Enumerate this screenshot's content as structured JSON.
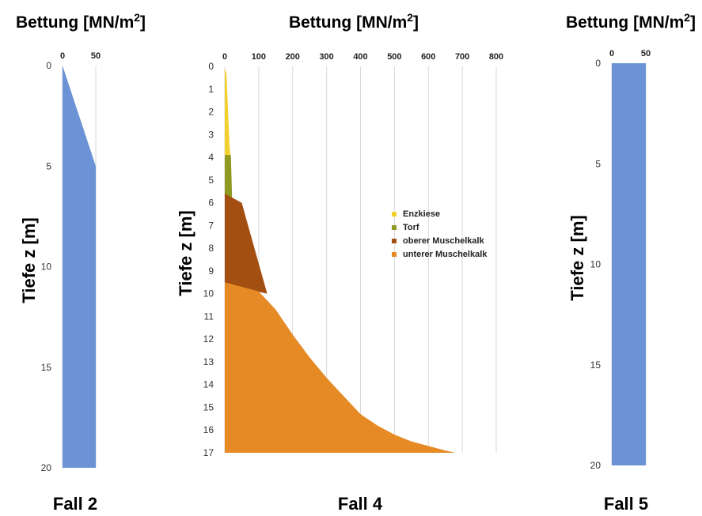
{
  "colors": {
    "blue": "#6b93d6",
    "yellow": "#f2d12e",
    "olive": "#8f9a22",
    "brown": "#a44f12",
    "orange": "#e58a25",
    "grid": "#d9d9d9"
  },
  "chart_data": [
    {
      "type": "area",
      "title": "Bettung [MN/m2]",
      "ylabel": "Tiefe z [m]",
      "caption": "Fall 2",
      "xlim": [
        0,
        50
      ],
      "ylim": [
        0,
        20
      ],
      "xticks": [
        0,
        50
      ],
      "yticks": [
        0,
        5,
        10,
        15,
        20
      ],
      "series": [
        {
          "x": [
            0,
            50,
            50
          ],
          "y": [
            0,
            5,
            20
          ],
          "color": "blue"
        }
      ]
    },
    {
      "type": "area",
      "title": "Bettung [MN/m2]",
      "ylabel": "Tiefe z [m]",
      "caption": "Fall 4",
      "xlim": [
        0,
        800
      ],
      "ylim": [
        0,
        17
      ],
      "xticks": [
        0,
        100,
        200,
        300,
        400,
        500,
        600,
        700,
        800
      ],
      "yticks": [
        0,
        1,
        2,
        3,
        4,
        5,
        6,
        7,
        8,
        9,
        10,
        11,
        12,
        13,
        14,
        15,
        16,
        17
      ],
      "legend_position": "right",
      "series": [
        {
          "name": "Enzkiese",
          "color": "yellow",
          "depth_range": [
            0,
            4.1
          ],
          "x": [
            0,
            18
          ],
          "y": [
            0,
            4.1
          ]
        },
        {
          "name": "Torf",
          "color": "olive",
          "depth_range": [
            3.9,
            6.0
          ],
          "x": [
            18,
            22
          ],
          "y": [
            3.9,
            6.0
          ]
        },
        {
          "name": "oberer Muschelkalk",
          "color": "brown",
          "depth_range": [
            5.6,
            10.0
          ],
          "x": [
            50,
            125
          ],
          "y": [
            6.0,
            10.0
          ]
        },
        {
          "name": "unterer Muschelkalk",
          "color": "orange",
          "depth_range": [
            9.5,
            17.0
          ],
          "x": [
            100,
            150,
            200,
            250,
            300,
            350,
            400,
            450,
            500,
            550,
            600,
            650,
            680
          ],
          "y": [
            9.9,
            10.7,
            11.8,
            12.8,
            13.7,
            14.5,
            15.3,
            15.8,
            16.2,
            16.5,
            16.7,
            16.9,
            17.0
          ]
        }
      ]
    },
    {
      "type": "area",
      "title": "Bettung [MN/m2]",
      "ylabel": "Tiefe z [m]",
      "caption": "Fall 5",
      "xlim": [
        0,
        50
      ],
      "ylim": [
        0,
        20
      ],
      "xticks": [
        0,
        50
      ],
      "yticks": [
        0,
        5,
        10,
        15,
        20
      ],
      "series": [
        {
          "x": [
            50,
            50
          ],
          "y": [
            0,
            20
          ],
          "color": "blue"
        }
      ]
    }
  ]
}
